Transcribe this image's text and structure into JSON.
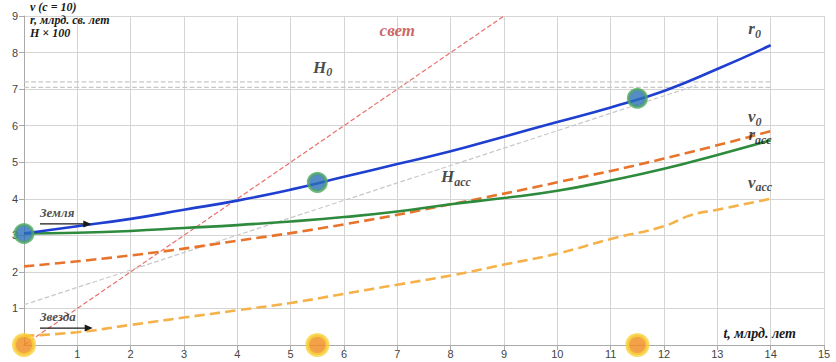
{
  "chart_data": {
    "type": "line",
    "title_lines": [
      "v (c = 10)",
      "r, млрд. св. лет",
      "H × 100"
    ],
    "x_label": "t, млрд. лет",
    "xlim": [
      0,
      15
    ],
    "xticks": [
      1,
      2,
      3,
      4,
      5,
      6,
      7,
      8,
      9,
      10,
      11,
      12,
      13,
      14,
      15
    ],
    "ylim": [
      0,
      9
    ],
    "yticks": [
      1,
      2,
      3,
      4,
      5,
      6,
      7,
      8,
      9
    ],
    "grid": true,
    "series": [
      {
        "color": "#e8706a",
        "line_style": "hairline",
        "x": [
          0,
          9
        ],
        "values": [
          0,
          9
        ]
      },
      {
        "color": "#c8c8c8",
        "line_style": "hairline",
        "x": [
          0,
          14
        ],
        "values": [
          7.2,
          7.2
        ]
      },
      {
        "color": "#c8c8c8",
        "line_style": "hairline",
        "x": [
          0,
          14
        ],
        "values": [
          7.05,
          7.05
        ]
      },
      {
        "color": "#c8c8c8",
        "line_style": "hairline",
        "x": [
          0,
          12.6
        ],
        "values": [
          1.1,
          7.1
        ]
      },
      {
        "color": "#f5b24a",
        "line_style": "dashed",
        "x": [
          0,
          1,
          2,
          3,
          4,
          5,
          6,
          7,
          8,
          9,
          10,
          11,
          12,
          12.5,
          13,
          14
        ],
        "values": [
          0.25,
          0.35,
          0.55,
          0.75,
          0.95,
          1.15,
          1.4,
          1.65,
          1.9,
          2.2,
          2.5,
          2.9,
          3.25,
          3.55,
          3.7,
          4.0
        ]
      },
      {
        "color": "#e8742c",
        "line_style": "dashed",
        "x": [
          0,
          2,
          4,
          6,
          8,
          10,
          12,
          14
        ],
        "values": [
          2.15,
          2.45,
          2.85,
          3.3,
          3.85,
          4.45,
          5.1,
          5.85
        ]
      },
      {
        "color": "#2e8b3e",
        "line_style": "solid",
        "x": [
          0,
          1,
          2,
          3,
          4,
          5,
          6,
          7,
          8,
          9,
          10,
          11,
          12,
          13,
          14
        ],
        "values": [
          3.05,
          3.07,
          3.12,
          3.2,
          3.28,
          3.38,
          3.5,
          3.65,
          3.85,
          4.02,
          4.22,
          4.5,
          4.82,
          5.2,
          5.6
        ]
      },
      {
        "color": "#1f3fd0",
        "line_style": "solid",
        "x": [
          0,
          1,
          2,
          3,
          4,
          5,
          6,
          7,
          8,
          9,
          10,
          11,
          12,
          13,
          14
        ],
        "values": [
          3.05,
          3.25,
          3.45,
          3.7,
          3.95,
          4.25,
          4.6,
          4.95,
          5.3,
          5.7,
          6.1,
          6.5,
          6.95,
          7.55,
          8.2
        ]
      }
    ],
    "markers": [
      {
        "marker": "earth",
        "color": "#2a6fb8",
        "x": [
          0,
          5.5,
          11.5
        ],
        "values": [
          3.05,
          4.45,
          6.75
        ]
      },
      {
        "marker": "star",
        "color": "#f08a1c",
        "x": [
          0,
          5.5,
          11.5
        ],
        "values": [
          0,
          0,
          0
        ]
      }
    ],
    "labels": [
      {
        "text": "свет",
        "color": "#c04040",
        "x": 7.0,
        "y": 8.6
      },
      {
        "text": "H",
        "sub": "0",
        "color": "#1a1a1a",
        "x": 5.6,
        "y": 7.6
      },
      {
        "text": "H",
        "sub": "acc",
        "color": "#1a1a1a",
        "x": 8.1,
        "y": 4.6
      },
      {
        "text": "r",
        "sub": "0",
        "color": "#1a1a1a",
        "x": 13.7,
        "y": 8.65
      },
      {
        "text": "v",
        "sub": "0",
        "color": "#1a1a1a",
        "x": 13.7,
        "y": 6.25
      },
      {
        "text": "r",
        "sub": "acc",
        "color": "#1a1a1a",
        "x": 13.8,
        "y": 5.75
      },
      {
        "text": "v",
        "sub": "acc",
        "color": "#1a1a1a",
        "x": 13.8,
        "y": 4.45
      }
    ],
    "pointer_labels": [
      {
        "text": "Земля",
        "x": 0.3,
        "y": 3.45
      },
      {
        "text": "Звезда",
        "x": 0.3,
        "y": 0.6
      }
    ]
  }
}
